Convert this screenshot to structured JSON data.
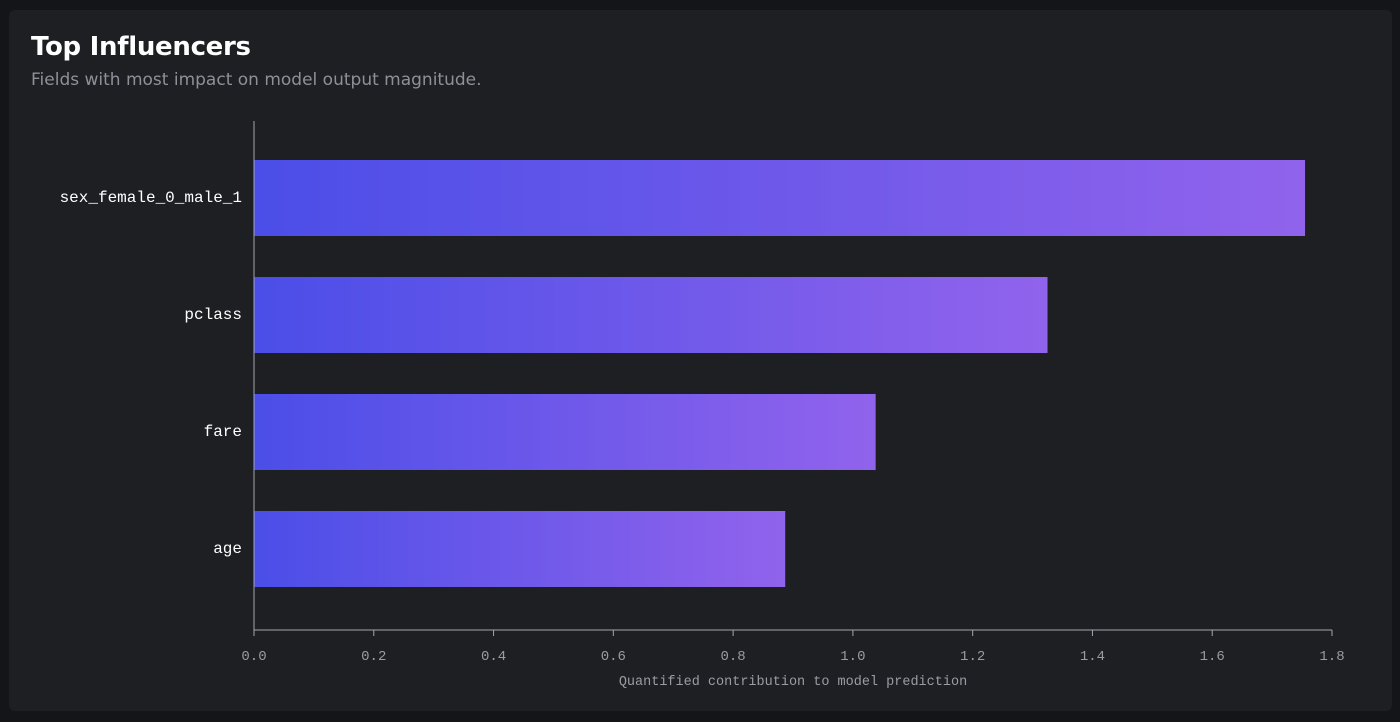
{
  "header": {
    "title": "Top Influencers",
    "subtitle": "Fields with most impact on model output magnitude."
  },
  "colors": {
    "background": "#141518",
    "card": "#1e1f23",
    "bar_start": "#4b4ee8",
    "bar_end": "#9163ec",
    "axis": "#a4a6ad"
  },
  "chart_data": {
    "type": "bar",
    "orientation": "horizontal",
    "categories": [
      "sex_female_0_male_1",
      "pclass",
      "fare",
      "age"
    ],
    "values": [
      1.755,
      1.325,
      1.038,
      0.887
    ],
    "xlabel": "Quantified contribution to model prediction",
    "ylabel": "",
    "xlim": [
      0,
      1.8
    ],
    "xticks": [
      "0.0",
      "0.2",
      "0.4",
      "0.6",
      "0.8",
      "1.0",
      "1.2",
      "1.4",
      "1.6",
      "1.8"
    ],
    "grid": false
  }
}
